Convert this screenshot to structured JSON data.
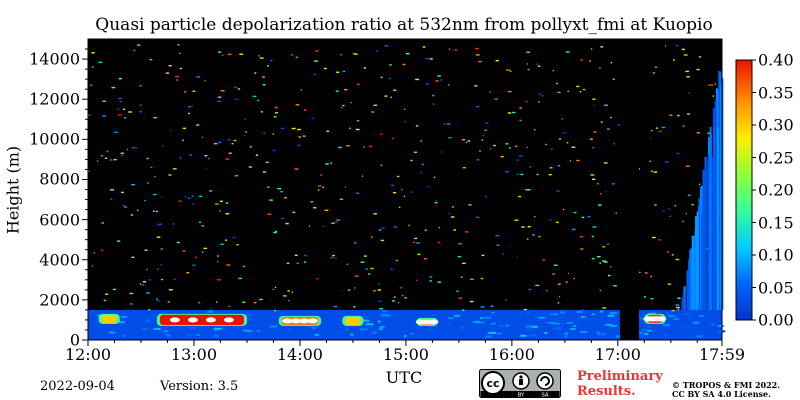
{
  "chart_data": {
    "type": "heatmap",
    "title": "Quasi particle depolarization ratio at 532nm from pollyxt_fmi at Kuopio",
    "xlabel": "UTC",
    "ylabel": "Height (m)",
    "x_ticks": [
      "12:00",
      "13:00",
      "14:00",
      "15:00",
      "16:00",
      "17:00",
      "17:59"
    ],
    "x_tick_hours": [
      12,
      13,
      14,
      15,
      16,
      17,
      17.983
    ],
    "xlim_hours": [
      12,
      17.983
    ],
    "y_ticks": [
      0,
      2000,
      4000,
      6000,
      8000,
      10000,
      12000,
      14000
    ],
    "ylim": [
      0,
      15000
    ],
    "colorbar": {
      "ticks": [
        "0.00",
        "0.05",
        "0.10",
        "0.15",
        "0.20",
        "0.25",
        "0.30",
        "0.35",
        "0.40"
      ],
      "range": [
        0,
        0.4
      ],
      "colormap": "jet"
    },
    "background_color": "#000000",
    "features": {
      "boundary_layer_top_m": 1500,
      "boundary_layer_value": 0.03,
      "depolarizing_layers": [
        {
          "start_h": 12.1,
          "end_h": 12.3,
          "base_m": 800,
          "top_m": 1300,
          "value": 0.3
        },
        {
          "start_h": 12.65,
          "end_h": 13.5,
          "base_m": 700,
          "top_m": 1300,
          "value": 0.4
        },
        {
          "start_h": 13.8,
          "end_h": 14.2,
          "base_m": 700,
          "top_m": 1200,
          "value": 0.35
        },
        {
          "start_h": 14.4,
          "end_h": 14.6,
          "base_m": 700,
          "top_m": 1200,
          "value": 0.3
        },
        {
          "start_h": 15.1,
          "end_h": 15.3,
          "base_m": 700,
          "top_m": 1100,
          "value": 0.35
        },
        {
          "start_h": 17.25,
          "end_h": 17.45,
          "base_m": 800,
          "top_m": 1300,
          "value": 0.38
        }
      ],
      "data_gap_hours": [
        17.02,
        17.2
      ],
      "late_profile_hours": [
        17.6,
        17.983
      ],
      "late_profile_top_m": 14800
    }
  },
  "footer": {
    "date": "2022-09-04",
    "version": "Version: 3.5",
    "license_badge": "cc-by-sa-badge",
    "license_by": "BY",
    "license_sa": "SA",
    "preliminary": [
      "Preliminary",
      "Results."
    ],
    "copyright": [
      "© TROPOS & FMI 2022.",
      "CC BY SA 4.0 License."
    ]
  },
  "colors": {
    "background": "#000000",
    "preliminary_text": "#ee3333"
  }
}
